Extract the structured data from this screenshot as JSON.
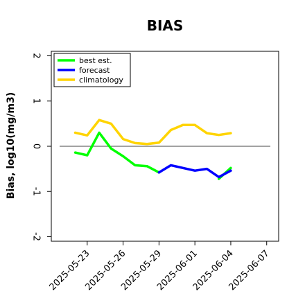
{
  "chart_data": {
    "type": "line",
    "title": "BIAS",
    "xlabel": "",
    "ylabel": "Bias, log10(mg/m3)",
    "xlim": [
      "2025-05-20",
      "2025-06-08"
    ],
    "ylim": [
      -2.1,
      2.1
    ],
    "grid": false,
    "legend_position": "top-left",
    "x_ticks": [
      "2025-05-23",
      "2025-05-26",
      "2025-05-29",
      "2025-06-01",
      "2025-06-04",
      "2025-06-07"
    ],
    "x_tick_colors": [
      "#000000",
      "#000000",
      "#2e8b2e",
      "#000000",
      "#000000",
      "#000000"
    ],
    "y_ticks": [
      -2,
      -1,
      0,
      1,
      2
    ],
    "reference_line": 0,
    "series": [
      {
        "name": "best est.",
        "color": "#00ff00",
        "x": [
          "2025-05-22",
          "2025-05-23",
          "2025-05-24",
          "2025-05-25",
          "2025-05-26",
          "2025-05-27",
          "2025-05-28",
          "2025-05-29",
          "2025-05-30",
          "2025-05-31",
          "2025-06-01",
          "2025-06-02",
          "2025-06-03",
          "2025-06-04"
        ],
        "values": [
          -0.14,
          -0.2,
          0.3,
          -0.05,
          -0.22,
          -0.42,
          -0.44,
          -0.58,
          null,
          null,
          null,
          null,
          -0.72,
          -0.48
        ]
      },
      {
        "name": "forecast",
        "color": "#0000ff",
        "x": [
          "2025-05-29",
          "2025-05-30",
          "2025-05-31",
          "2025-06-01",
          "2025-06-02",
          "2025-06-03",
          "2025-06-04"
        ],
        "values": [
          -0.58,
          -0.42,
          -0.48,
          -0.54,
          -0.5,
          -0.68,
          -0.54
        ]
      },
      {
        "name": "climatology",
        "color": "#ffd400",
        "x": [
          "2025-05-22",
          "2025-05-23",
          "2025-05-24",
          "2025-05-25",
          "2025-05-26",
          "2025-05-27",
          "2025-05-28",
          "2025-05-29",
          "2025-05-30",
          "2025-05-31",
          "2025-06-01",
          "2025-06-02",
          "2025-06-03",
          "2025-06-04"
        ],
        "values": [
          0.3,
          0.24,
          0.58,
          0.5,
          0.16,
          0.07,
          0.05,
          0.08,
          0.36,
          0.47,
          0.47,
          0.29,
          0.25,
          0.29
        ]
      }
    ]
  }
}
